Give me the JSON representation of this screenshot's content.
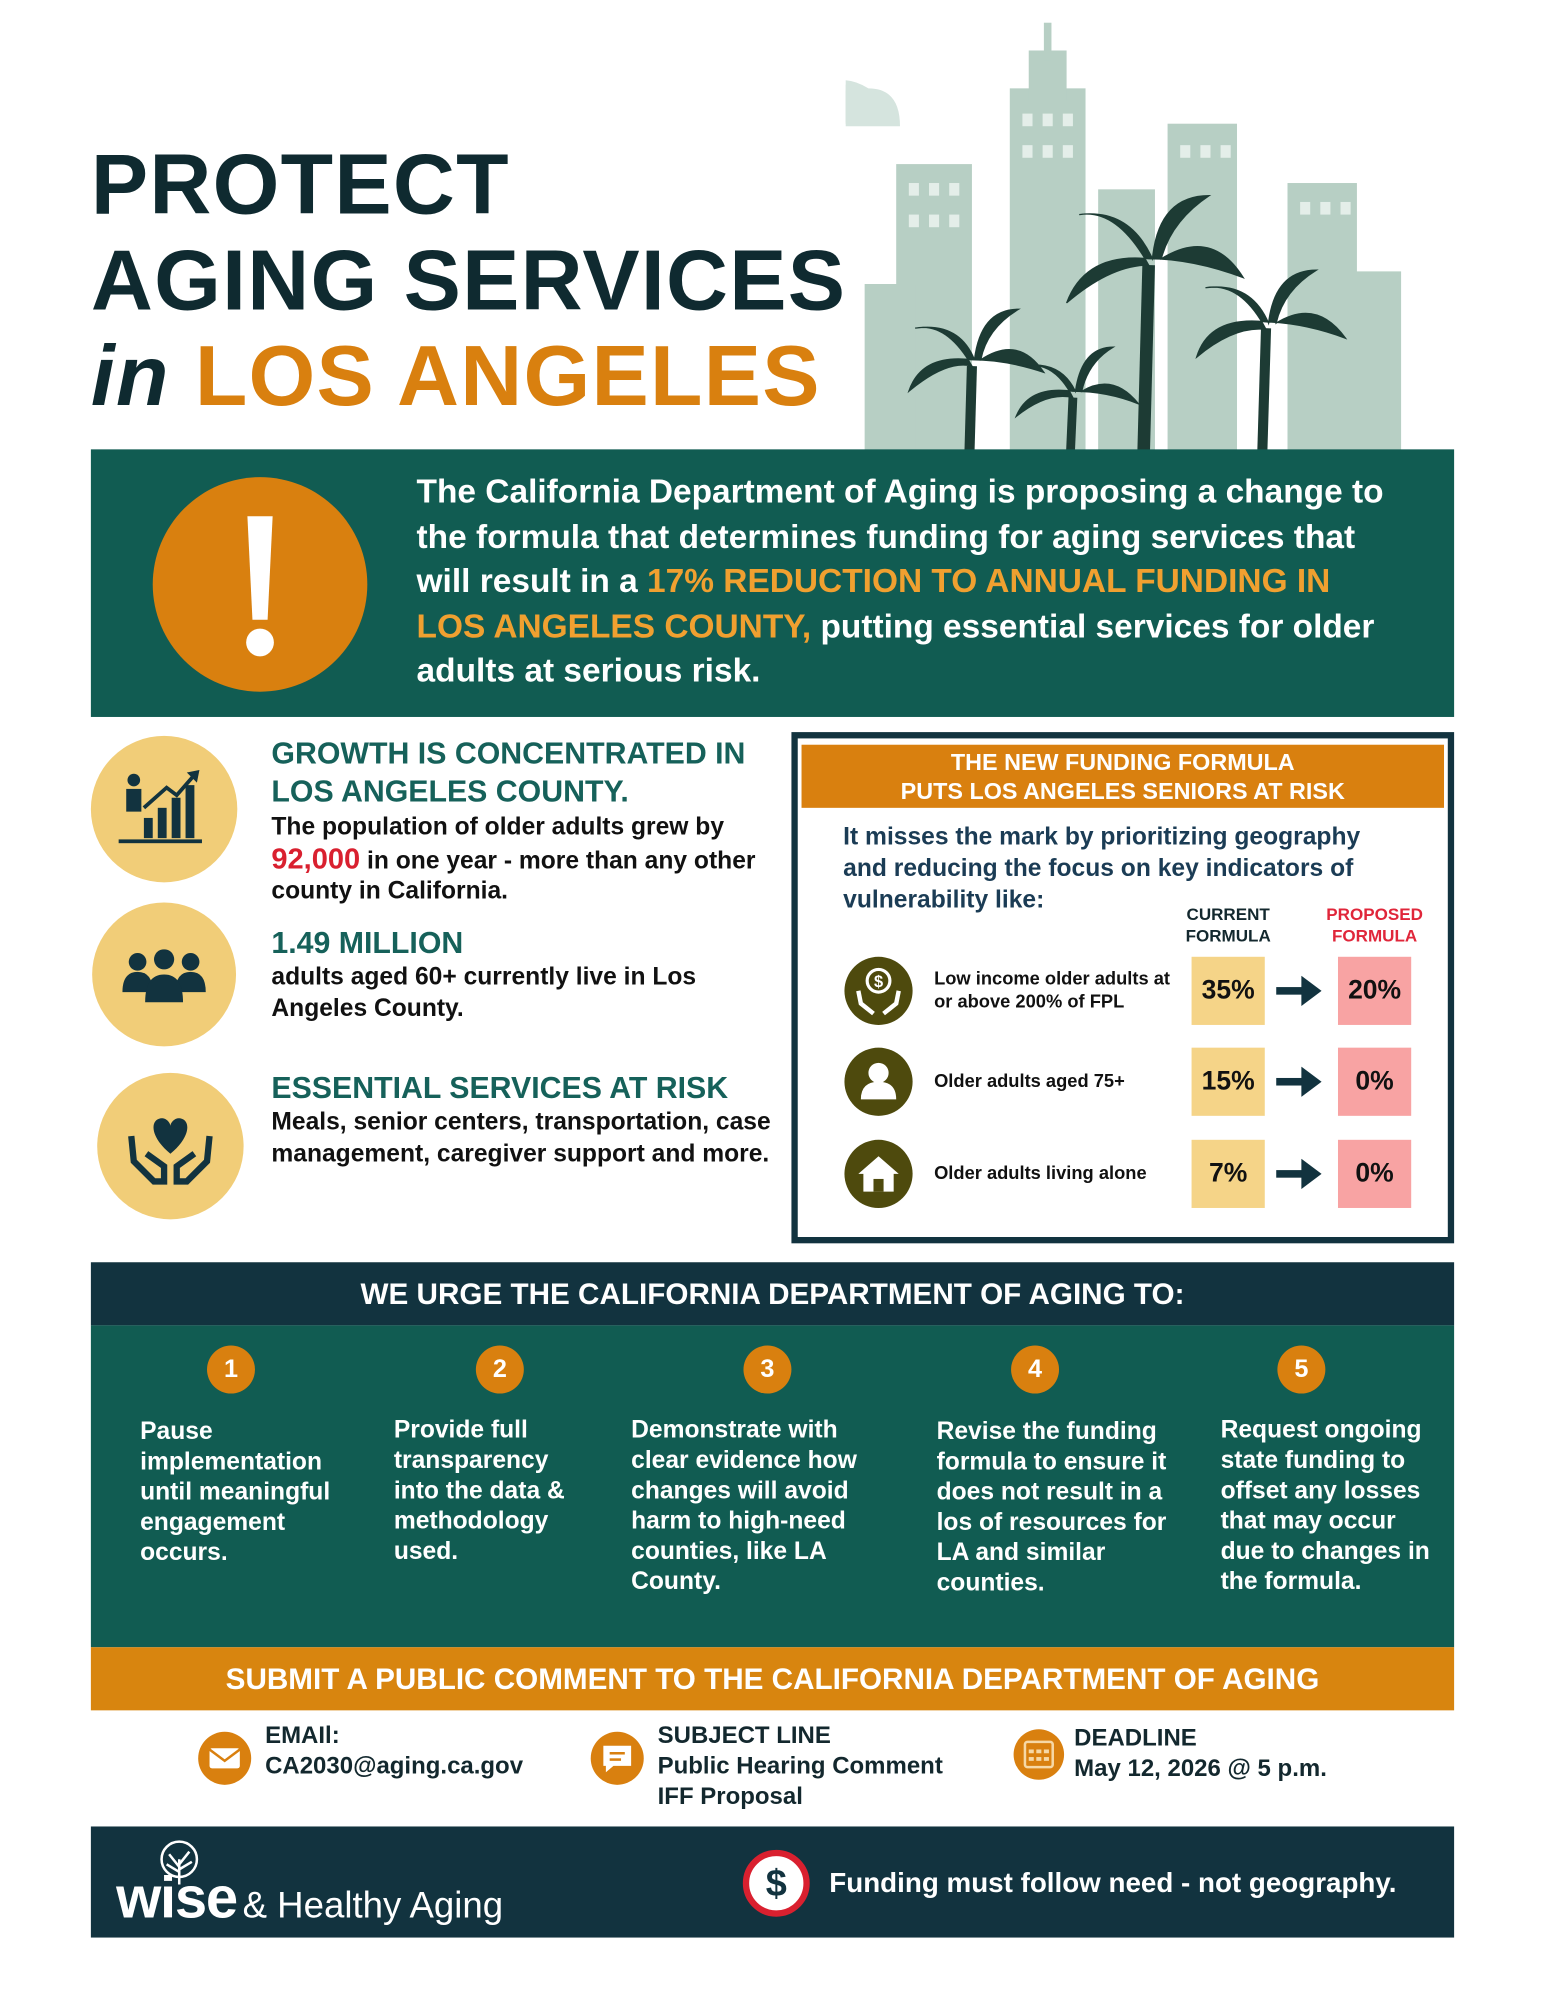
{
  "header": {
    "title_line1": "PROTECT",
    "title_line2": "AGING SERVICES",
    "title_in": "in",
    "title_place": "LOS ANGELES"
  },
  "alert": {
    "text_before": "The California Department of Aging is proposing a change to the formula that determines funding for aging services that will result in a ",
    "highlight": "17% REDUCTION TO ANNUAL FUNDING IN LOS ANGELES COUNTY,",
    "text_after": " putting essential services for older adults at serious risk."
  },
  "stats": [
    {
      "heading": "GROWTH IS CONCENTRATED IN LOS ANGELES COUNTY.",
      "text_before": "The population of older adults grew by ",
      "highlight": "92,000",
      "text_after": " in one year - more than any other county in California."
    },
    {
      "heading": "1.49 MILLION",
      "text": "adults aged 60+ currently live in Los Angeles County."
    },
    {
      "heading": "ESSENTIAL SERVICES AT RISK",
      "text": "Meals, senior centers, transportation, case management, caregiver support and more."
    }
  ],
  "formula": {
    "title_line1": "THE NEW FUNDING FORMULA",
    "title_line2": "PUTS LOS ANGELES SENIORS AT RISK",
    "intro": "It misses the mark by prioritizing geography and reducing the focus on key indicators of vulnerability like:",
    "column_current": "CURRENT FORMULA",
    "column_proposed": "PROPOSED FORMULA",
    "rows": [
      {
        "label": "Low income older adults at or above 200% of FPL",
        "current": "35%",
        "proposed": "20%"
      },
      {
        "label": "Older  adults aged 75+",
        "current": "15%",
        "proposed": "0%"
      },
      {
        "label": "Older  adults living alone",
        "current": "7%",
        "proposed": "0%"
      }
    ]
  },
  "urge": {
    "title": "WE URGE THE CALIFORNIA DEPARTMENT OF AGING TO:",
    "items": [
      {
        "number": "1",
        "text": "Pause implementation until meaningful engagement occurs."
      },
      {
        "number": "2",
        "text": "Provide full transparency into the data & methodology used."
      },
      {
        "number": "3",
        "text": "Demonstrate with clear evidence how changes will avoid harm to high-need counties, like LA County."
      },
      {
        "number": "4",
        "text": "Revise the funding formula to ensure it does not result in a los of resources for LA and similar counties."
      },
      {
        "number": "5",
        "text": "Request ongoing state funding to offset any losses that may occur due to changes in the formula."
      }
    ]
  },
  "submit": {
    "title": "SUBMIT A PUBLIC COMMENT TO THE CALIFORNIA DEPARTMENT OF AGING",
    "email_label": "EMAIl:",
    "email": "CA2030@aging.ca.gov",
    "subject_label": "SUBJECT LINE",
    "subject": "Public Hearing Comment IFF Proposal",
    "deadline_label": "DEADLINE",
    "deadline": "May 12, 2026 @ 5 p.m."
  },
  "footer": {
    "logo_word": "wise",
    "logo_rest": "& Healthy Aging",
    "tagline": "Funding must follow need - not geography."
  }
}
